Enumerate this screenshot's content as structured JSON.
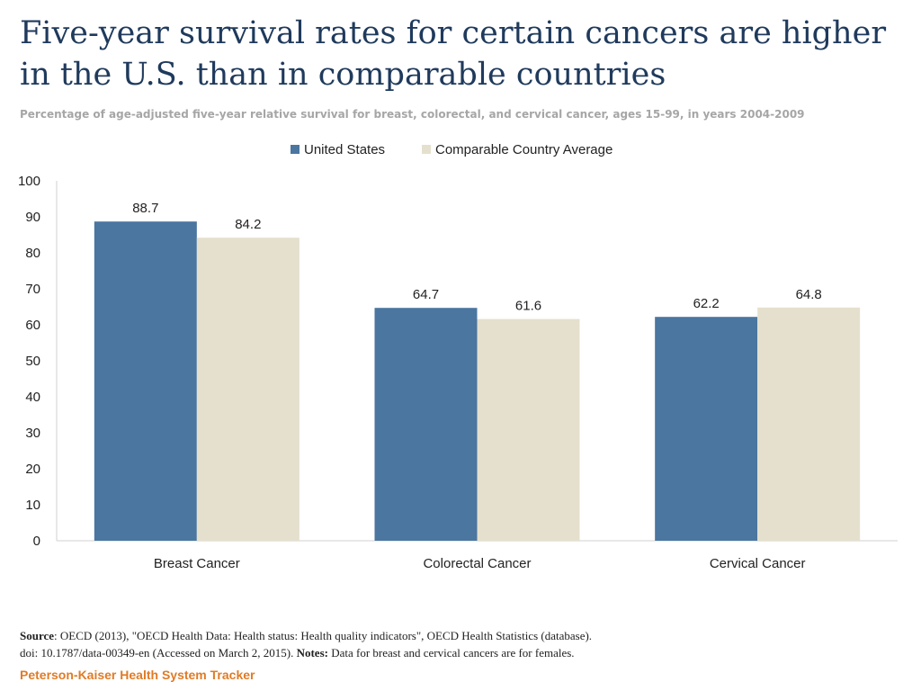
{
  "title": "Five-year survival rates for certain cancers are higher in the U.S. than in comparable countries",
  "subtitle": "Percentage of age-adjusted five-year relative survival for breast, colorectal, and cervical cancer, ages 15-99, in years 2004-2009",
  "chart_data": {
    "type": "bar",
    "categories": [
      "Breast Cancer",
      "Colorectal Cancer",
      "Cervical Cancer"
    ],
    "series": [
      {
        "name": "United States",
        "values": [
          88.7,
          64.7,
          62.2
        ],
        "color": "#4a76a0"
      },
      {
        "name": "Comparable Country Average",
        "values": [
          84.2,
          61.6,
          64.8
        ],
        "color": "#e5e0cd"
      }
    ],
    "ylim": [
      0,
      100
    ],
    "yticks": [
      0,
      10,
      20,
      30,
      40,
      50,
      60,
      70,
      80,
      90,
      100
    ],
    "legend": "top-center",
    "grid": false,
    "xlabel": "",
    "ylabel": ""
  },
  "source": {
    "label": "Source",
    "text1": ": OECD (2013), \"OECD Health Data: Health status: Health quality  indicators\", OECD Health Statistics (database).",
    "text2": "doi: 10.1787/data-00349-en (Accessed on March 2,  2015).",
    "notes_label": "Notes:",
    "notes_text": " Data for breast and cervical cancers are for females."
  },
  "footer": "Peterson-Kaiser Health System Tracker"
}
